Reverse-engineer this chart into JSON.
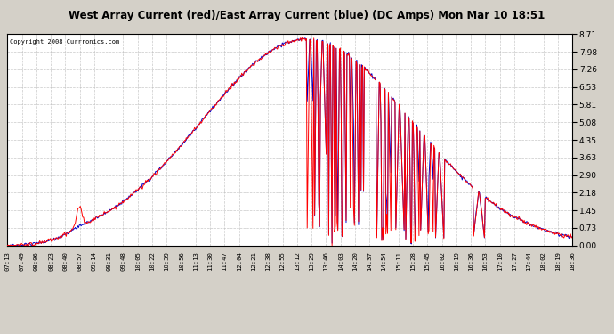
{
  "title": "West Array Current (red)/East Array Current (blue) (DC Amps) Mon Mar 10 18:51",
  "copyright": "Copyright 2008 Currronics.com",
  "yticks": [
    0.0,
    0.73,
    1.45,
    2.18,
    2.9,
    3.63,
    4.35,
    5.08,
    5.81,
    6.53,
    7.26,
    7.98,
    8.71
  ],
  "ymin": 0.0,
  "ymax": 8.71,
  "xtick_labels": [
    "07:13",
    "07:49",
    "08:06",
    "08:23",
    "08:40",
    "08:57",
    "09:14",
    "09:31",
    "09:48",
    "10:05",
    "10:22",
    "10:39",
    "10:56",
    "11:13",
    "11:30",
    "11:47",
    "12:04",
    "12:21",
    "12:38",
    "12:55",
    "13:12",
    "13:29",
    "13:46",
    "14:03",
    "14:20",
    "14:37",
    "14:54",
    "15:11",
    "15:28",
    "15:45",
    "16:02",
    "16:19",
    "16:36",
    "16:53",
    "17:10",
    "17:27",
    "17:44",
    "18:02",
    "18:19",
    "18:36"
  ],
  "bg_color": "#ffffff",
  "plot_bg_color": "#ffffff",
  "grid_color": "#bbbbbb",
  "red_color": "#ff0000",
  "blue_color": "#0000cc",
  "title_bg": "#d4d0c8",
  "outer_bg": "#d4d0c8"
}
